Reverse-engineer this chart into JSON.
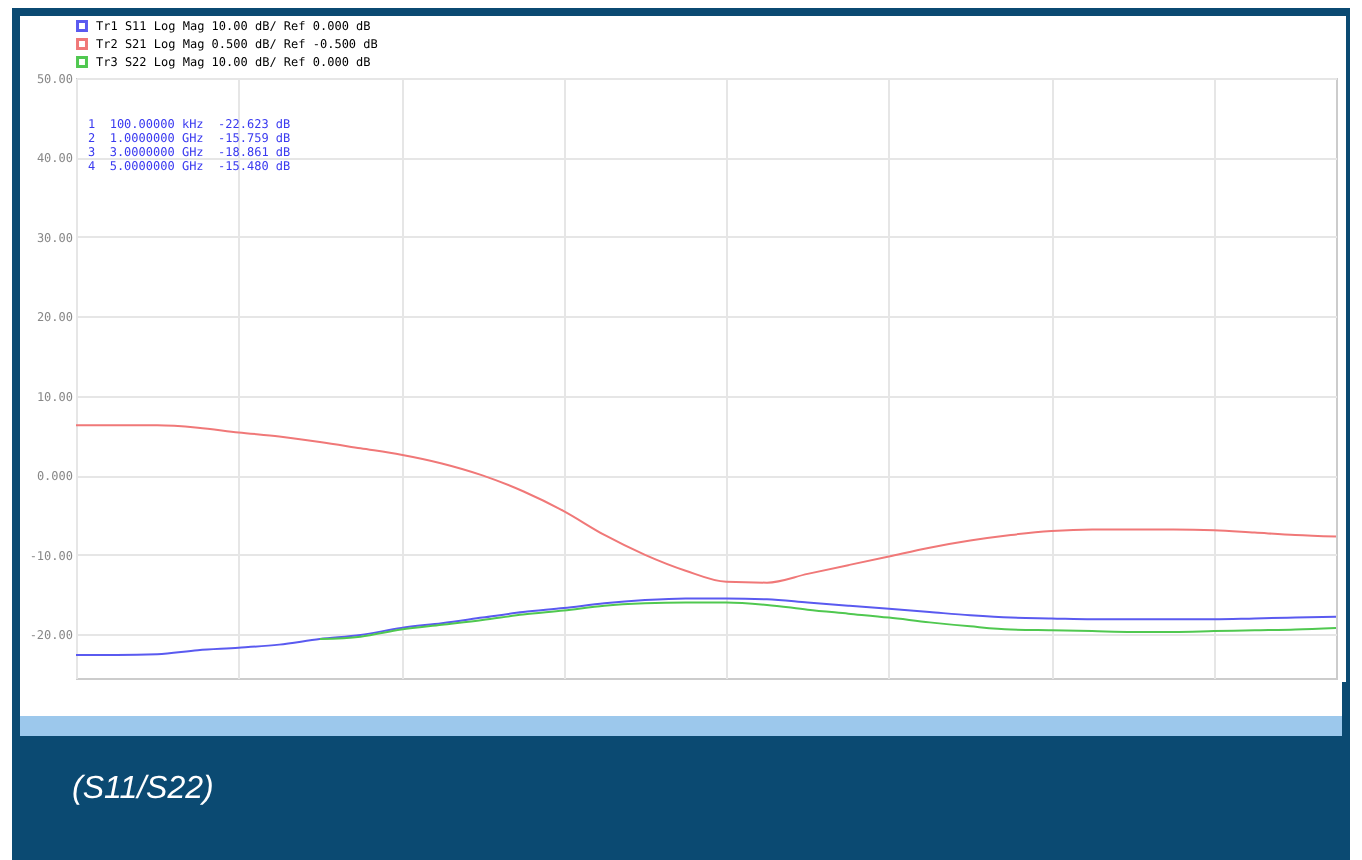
{
  "chart_data": {
    "type": "line",
    "title": "(S11/S22)",
    "annotations": [
      "1  100.00000 kHz  -22.623 dB",
      "2  1.0000000 GHz  -15.759 dB",
      "3  3.0000000 GHz  -18.861 dB",
      "4  5.0000000 GHz  -15.480 dB"
    ],
    "categories": [
      null,
      null,
      null,
      null,
      null,
      null,
      null,
      null,
      null,
      null,
      null,
      null,
      null,
      null,
      null,
      null,
      null,
      null,
      null,
      null,
      null,
      null,
      null,
      null,
      null,
      null,
      null,
      null,
      null,
      null,
      null,
      null
    ],
    "series": [
      {
        "name": "Tr1 S11 Log Mag 10.00 dB/ Ref 0.000 dB",
        "color": "#5a5af0",
        "values": [
          -22.6,
          -22.6,
          -22.5,
          -22.0,
          -21.7,
          -21.3,
          -20.6,
          -20.1,
          -19.2,
          -18.6,
          -17.9,
          -17.2,
          -16.7,
          -16.1,
          -15.7,
          -15.5,
          -15.5,
          -15.6,
          -16.0,
          -16.4,
          -16.8,
          -17.2,
          -17.6,
          -17.9,
          -18.0,
          -18.1,
          -18.1,
          -18.1,
          -18.1,
          -18.0,
          -17.9,
          -17.8
        ]
      },
      {
        "name": "Tr2 S21 Log Mag 0.500 dB/ Ref -0.500 dB",
        "color": "#f07878",
        "values": [
          6.3,
          6.3,
          6.3,
          6.0,
          5.4,
          4.9,
          4.2,
          3.4,
          2.6,
          1.5,
          0.0,
          -2.0,
          -4.5,
          -7.5,
          -10.0,
          -12.0,
          -13.4,
          -13.5,
          -12.4,
          -11.3,
          -10.2,
          -9.1,
          -8.2,
          -7.5,
          -7.0,
          -6.8,
          -6.8,
          -6.8,
          -6.9,
          -7.2,
          -7.5,
          -7.7
        ]
      },
      {
        "name": "Tr3 S22 Log Mag 10.00 dB/ Ref 0.000 dB",
        "color": "#50c850",
        "values": [
          null,
          null,
          null,
          null,
          null,
          null,
          -20.6,
          -20.3,
          -19.4,
          -18.8,
          -18.2,
          -17.5,
          -17.0,
          -16.4,
          -16.1,
          -16.0,
          -16.0,
          -16.3,
          -16.9,
          -17.4,
          -17.9,
          -18.5,
          -19.0,
          -19.4,
          -19.5,
          -19.6,
          -19.7,
          -19.7,
          -19.6,
          -19.5,
          -19.4,
          -19.2
        ]
      }
    ],
    "ylim": [
      -25.5,
      50
    ],
    "yticks": [
      {
        "value": 50,
        "label": "50.00"
      },
      {
        "value": 40,
        "label": "40.00"
      },
      {
        "value": 30,
        "label": "30.00"
      },
      {
        "value": 20,
        "label": "20.00"
      },
      {
        "value": 10,
        "label": "10.00"
      },
      {
        "value": 0,
        "label": "0.000"
      },
      {
        "value": -10,
        "label": "-10.00"
      },
      {
        "value": -20,
        "label": "-20.00"
      }
    ],
    "grid": true,
    "legend": "top left",
    "tick_labels": "y",
    "marker": "none",
    "line_style": "solid"
  }
}
